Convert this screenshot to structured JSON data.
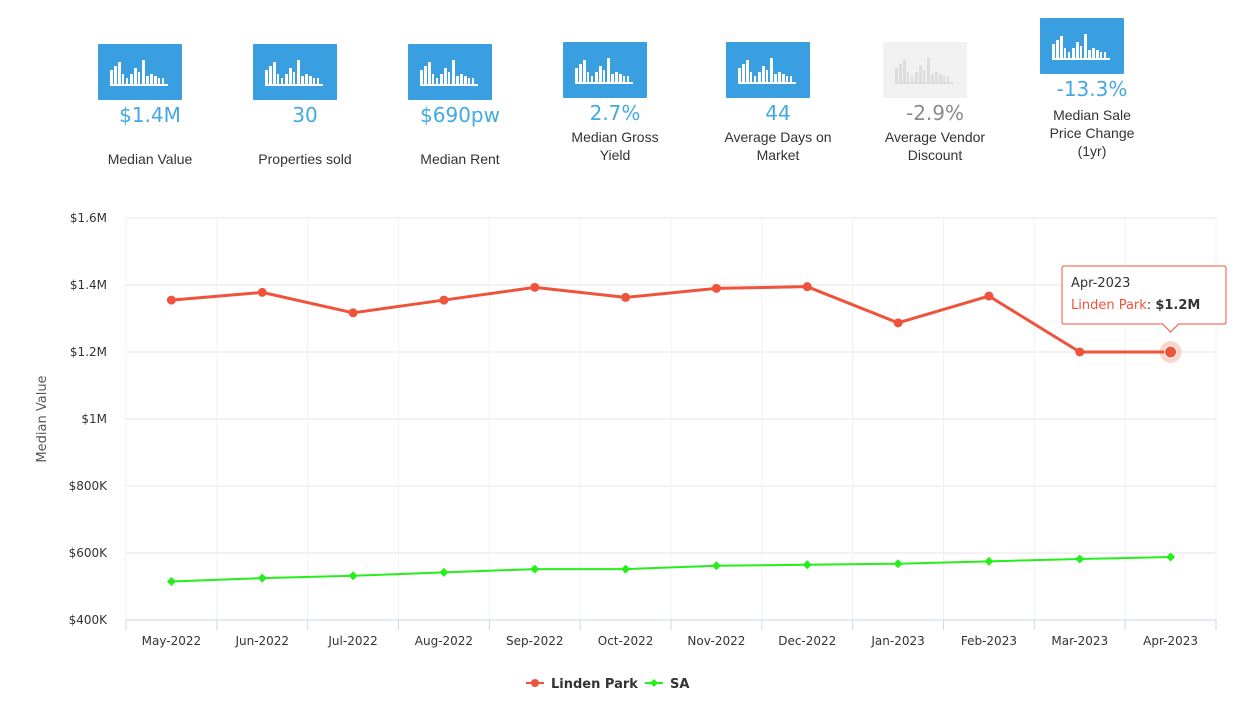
{
  "stats": [
    {
      "value": "$1.4M",
      "label": "Median Value",
      "enabled": true,
      "icon": "bar-chart-icon"
    },
    {
      "value": "30",
      "label": "Properties sold",
      "enabled": true,
      "icon": "bar-chart-icon"
    },
    {
      "value": "$690pw",
      "label": "Median Rent",
      "enabled": true,
      "icon": "bar-chart-icon"
    },
    {
      "value": "2.7%",
      "label": "Median Gross Yield",
      "enabled": true,
      "icon": "bar-chart-icon"
    },
    {
      "value": "44",
      "label": "Average Days on Market",
      "enabled": true,
      "icon": "bar-chart-icon"
    },
    {
      "value": "-2.9%",
      "label": "Average Vendor Discount",
      "enabled": false,
      "icon": "bar-chart-icon"
    },
    {
      "value": "-13.3%",
      "label": "Median Sale Price Change (1yr)",
      "enabled": true,
      "icon": "bar-chart-icon"
    }
  ],
  "colors": {
    "accent": "#3a9fe1",
    "linden_park": "#f0533b",
    "sa": "#25ef1a"
  },
  "chart_data": {
    "type": "line",
    "title": "",
    "xlabel": "",
    "ylabel": "Median Value",
    "ylim": [
      400000,
      1600000
    ],
    "y_ticks": [
      400000,
      600000,
      800000,
      1000000,
      1200000,
      1400000,
      1600000
    ],
    "y_tick_labels": [
      "$400K",
      "$600K",
      "$800K",
      "$1M",
      "$1.2M",
      "$1.4M",
      "$1.6M"
    ],
    "categories": [
      "May-2022",
      "Jun-2022",
      "Jul-2022",
      "Aug-2022",
      "Sep-2022",
      "Oct-2022",
      "Nov-2022",
      "Dec-2022",
      "Jan-2023",
      "Feb-2023",
      "Mar-2023",
      "Apr-2023"
    ],
    "series": [
      {
        "name": "Linden Park",
        "color": "#f0533b",
        "marker": "circle",
        "values": [
          1355000,
          1378000,
          1317000,
          1355000,
          1393000,
          1363000,
          1390000,
          1395000,
          1287000,
          1367000,
          1200000,
          1200000
        ]
      },
      {
        "name": "SA",
        "color": "#25ef1a",
        "marker": "diamond",
        "values": [
          515000,
          525000,
          532000,
          542000,
          552000,
          552000,
          562000,
          565000,
          568000,
          575000,
          582000,
          588000
        ]
      }
    ],
    "legend": [
      "Linden Park",
      "SA"
    ],
    "legend_position": "bottom-center",
    "tooltip": {
      "title": "Apr-2023",
      "series": "Linden Park",
      "value": "$1.2M",
      "index": 11
    }
  }
}
